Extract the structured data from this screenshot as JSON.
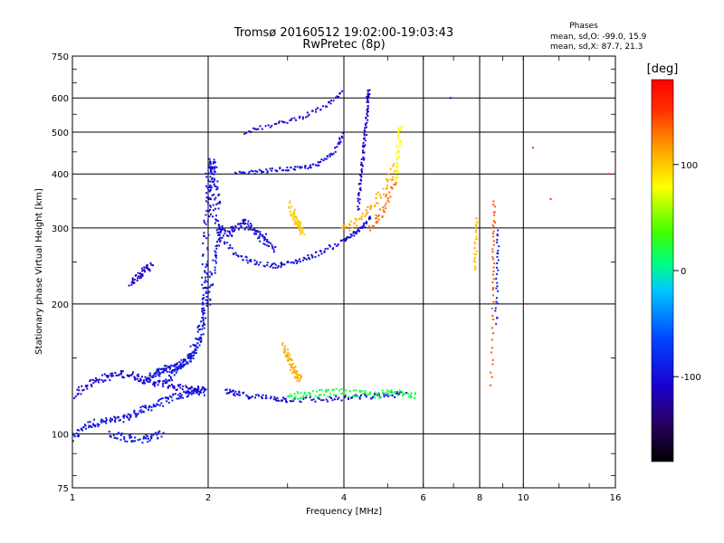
{
  "chart_data": {
    "type": "scatter",
    "title": "Tromsø 20160512 19:02:00-19:03:43",
    "subtitle": "RwPretec (8p)",
    "xlabel": "Frequency [MHz]",
    "ylabel": "Stationary phase Virtual Height [km]",
    "x_scale": "log",
    "y_scale": "log",
    "xlim": [
      1,
      16
    ],
    "ylim": [
      75,
      750
    ],
    "x_ticks": [
      1,
      2,
      4,
      6,
      8,
      10,
      16
    ],
    "y_ticks": [
      75,
      100,
      200,
      300,
      400,
      500,
      600,
      750
    ],
    "grid": true,
    "annotation": {
      "heading": "Phases",
      "line1": "mean, sd,O: -99.0, 15.9",
      "line2": "mean, sd,X:  87.7, 21.3"
    },
    "colorbar": {
      "label": "[deg]",
      "range": [
        -180,
        180
      ],
      "ticks": [
        100,
        0,
        -100
      ],
      "colors": [
        "#000000",
        "#2a0060",
        "#1a00d0",
        "#0044ff",
        "#00c8ff",
        "#00ff80",
        "#40ff00",
        "#ffff00",
        "#ffa000",
        "#ff3000",
        "#ff0000"
      ]
    },
    "traces": [
      {
        "x": [
          1.0,
          1.06,
          1.12,
          1.2,
          1.28,
          1.35,
          1.42,
          1.5,
          1.6,
          1.7,
          1.8,
          1.9,
          1.97
        ],
        "y": [
          97,
          104,
          106,
          107,
          108,
          110,
          113,
          116,
          119,
          122,
          124,
          126,
          127
        ],
        "phase": -95,
        "spread": 0.04
      },
      {
        "x": [
          1.0,
          1.08,
          1.15,
          1.22,
          1.3,
          1.38,
          1.45,
          1.55,
          1.65,
          1.75,
          1.85,
          1.95
        ],
        "y": [
          122,
          130,
          134,
          136,
          138,
          136,
          133,
          131,
          130,
          127,
          126,
          125
        ],
        "phase": -105,
        "spread": 0.04
      },
      {
        "x": [
          1.45,
          1.5,
          1.55,
          1.6,
          1.65,
          1.7,
          1.75,
          1.8,
          1.85,
          1.9,
          1.95,
          1.99
        ],
        "y": [
          132,
          137,
          139,
          141,
          142,
          143,
          145,
          148,
          152,
          160,
          180,
          230
        ],
        "phase": -95,
        "spread": 0.04
      },
      {
        "x": [
          1.6,
          1.7,
          1.8,
          1.9,
          1.95,
          1.99
        ],
        "y": [
          130,
          140,
          150,
          165,
          190,
          250
        ],
        "phase": -90,
        "spread": 0.04
      },
      {
        "x": [
          1.94,
          1.96,
          1.98,
          2.0,
          2.02,
          2.04,
          2.06,
          2.08,
          2.1
        ],
        "y": [
          180,
          230,
          290,
          350,
          400,
          430,
          410,
          370,
          330
        ],
        "phase": -100,
        "spread": 0.05
      },
      {
        "x": [
          2.0,
          2.05,
          2.1,
          2.2,
          2.3,
          2.4,
          2.5,
          2.6,
          2.7,
          2.8
        ],
        "y": [
          400,
          330,
          300,
          290,
          300,
          310,
          300,
          290,
          280,
          270
        ],
        "phase": -100,
        "spread": 0.05
      },
      {
        "x": [
          2.1,
          2.3,
          2.5,
          2.8,
          3.0,
          3.3,
          3.6,
          4.0,
          4.2,
          4.4,
          4.6
        ],
        "y": [
          290,
          260,
          250,
          245,
          248,
          255,
          265,
          280,
          290,
          300,
          320
        ],
        "phase": -100,
        "spread": 0.025
      },
      {
        "x": [
          4.3,
          4.35,
          4.4,
          4.45,
          4.5,
          4.52,
          4.55
        ],
        "y": [
          330,
          380,
          430,
          480,
          540,
          600,
          630
        ],
        "phase": -110,
        "spread": 0.02
      },
      {
        "x": [
          2.0,
          2.05,
          2.1,
          2.15
        ],
        "y": [
          200,
          240,
          270,
          300
        ],
        "phase": -95,
        "spread": 0.04
      },
      {
        "x": [
          2.3,
          2.6,
          2.9,
          3.2,
          3.5,
          3.8,
          4.0
        ],
        "y": [
          400,
          405,
          410,
          412,
          420,
          450,
          500
        ],
        "phase": -100,
        "spread": 0.02
      },
      {
        "x": [
          2.4,
          2.8,
          3.2,
          3.6,
          4.0
        ],
        "y": [
          500,
          520,
          540,
          570,
          620
        ],
        "phase": -105,
        "spread": 0.02
      },
      {
        "x": [
          2.2,
          2.3,
          2.5,
          2.8,
          3.0,
          3.5,
          4.0,
          4.5,
          5.0,
          5.5
        ],
        "y": [
          125,
          124,
          122,
          121,
          120,
          120,
          121,
          122,
          123,
          124
        ],
        "phase": -100,
        "spread": 0.03
      },
      {
        "x": [
          3.0,
          3.2,
          3.5,
          3.8,
          4.2,
          4.6,
          5.0,
          5.4,
          5.8
        ],
        "y": [
          122,
          123,
          124,
          125,
          124,
          123,
          124,
          125,
          123
        ],
        "phase": 20,
        "spread": 0.04
      },
      {
        "x": [
          4.0,
          4.3,
          4.6,
          4.9,
          5.2
        ],
        "y": [
          300,
          310,
          330,
          370,
          420
        ],
        "phase": 110,
        "spread": 0.05
      },
      {
        "x": [
          5.2,
          5.25,
          5.3,
          5.35
        ],
        "y": [
          380,
          420,
          470,
          520
        ],
        "phase": 80,
        "spread": 0.03
      },
      {
        "x": [
          3.05,
          3.1,
          3.15,
          3.2,
          3.25
        ],
        "y": [
          340,
          320,
          310,
          300,
          290
        ],
        "phase": 100,
        "spread": 0.04
      },
      {
        "x": [
          2.95,
          3.0,
          3.05,
          3.1,
          3.15,
          3.2
        ],
        "y": [
          160,
          152,
          146,
          140,
          136,
          133
        ],
        "phase": 110,
        "spread": 0.04
      },
      {
        "x": [
          1.35,
          1.4,
          1.45,
          1.5
        ],
        "y": [
          222,
          232,
          240,
          245
        ],
        "phase": -110,
        "spread": 0.04
      },
      {
        "x": [
          1.2,
          1.3,
          1.4,
          1.5,
          1.6
        ],
        "y": [
          100,
          98,
          97,
          98,
          100
        ],
        "phase": -90,
        "spread": 0.04
      },
      {
        "x": [
          4.6,
          4.8,
          5.0,
          5.2
        ],
        "y": [
          300,
          320,
          350,
          390
        ],
        "phase": 130,
        "spread": 0.04
      },
      {
        "x": [
          6.9
        ],
        "y": [
          600
        ],
        "phase": -100,
        "spread": 0
      },
      {
        "x": [
          8.5,
          8.55,
          8.6,
          8.62
        ],
        "y": [
          130,
          210,
          280,
          350
        ],
        "phase": 140,
        "spread": 0.02
      },
      {
        "x": [
          7.8,
          7.85,
          7.9
        ],
        "y": [
          240,
          280,
          320
        ],
        "phase": 100,
        "spread": 0.02
      },
      {
        "x": [
          8.7,
          8.75,
          8.8
        ],
        "y": [
          180,
          240,
          300
        ],
        "phase": -90,
        "spread": 0.02
      },
      {
        "x": [
          10.2,
          10.5,
          11.5,
          15.5
        ],
        "y": [
          200,
          460,
          350,
          400
        ],
        "phase": 150,
        "spread": 0
      }
    ]
  }
}
